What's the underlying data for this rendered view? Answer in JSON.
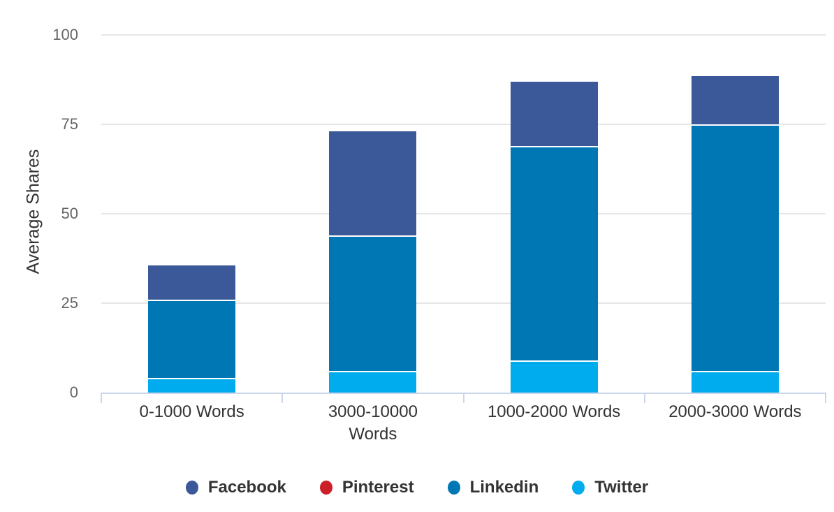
{
  "chart_data": {
    "type": "bar",
    "stacked": true,
    "title": "",
    "xlabel": "",
    "ylabel": "Average Shares",
    "ylim": [
      0,
      100
    ],
    "yticks": [
      0,
      25,
      50,
      75,
      100
    ],
    "grid": true,
    "legend_position": "bottom-center",
    "categories": [
      "0-1000 Words",
      "3000-10000 Words",
      "1000-2000 Words",
      "2000-3000 Words"
    ],
    "category_label_lines": [
      [
        "0-1000 Words"
      ],
      [
        "3000-10000",
        "Words"
      ],
      [
        "1000-2000 Words"
      ],
      [
        "2000-3000 Words"
      ]
    ],
    "series": [
      {
        "name": "Facebook",
        "color": "#3B5998",
        "values": [
          9.5,
          29,
          18,
          13.5
        ]
      },
      {
        "name": "Pinterest",
        "color": "#CB2027",
        "values": [
          0,
          0,
          0,
          0
        ]
      },
      {
        "name": "Linkedin",
        "color": "#0077B5",
        "values": [
          22,
          38,
          60,
          69
        ]
      },
      {
        "name": "Twitter",
        "color": "#00ACEE",
        "values": [
          4,
          6,
          9,
          6
        ]
      }
    ]
  },
  "colors": {
    "background": "#FFFFFF",
    "gridline": "#E6E6E6",
    "axis_line": "#CCD6EB",
    "tick_mark": "#CCD6EB",
    "y_tick_label": "#666666",
    "x_category_label": "#333333",
    "legend_text": "#333333",
    "axis_title_text": "#333333",
    "segment_border": "#FFFFFF"
  }
}
